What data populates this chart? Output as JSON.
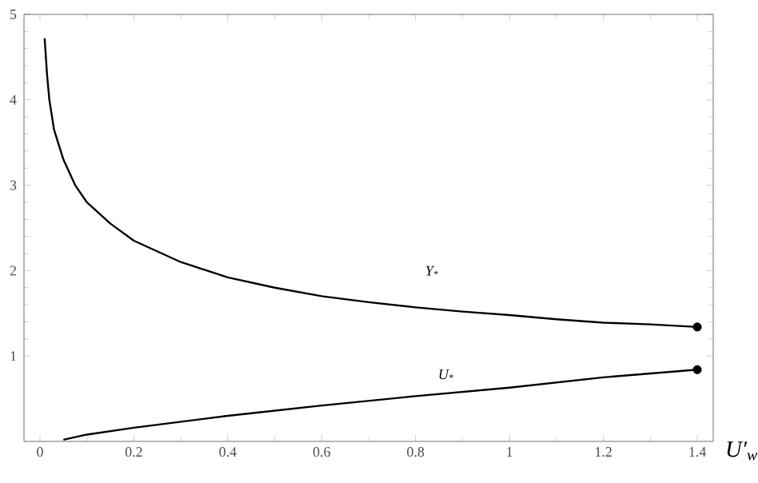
{
  "chart_data": {
    "type": "line",
    "xlabel": "U′$_{w}$",
    "xlim": [
      -0.034,
      1.434
    ],
    "ylim": [
      0,
      5
    ],
    "xticks": [
      0,
      0.2,
      0.4,
      0.6,
      0.8,
      1,
      1.2,
      1.4
    ],
    "yticks": [
      1,
      2,
      3,
      4,
      5
    ],
    "grid": false,
    "series": [
      {
        "name": "Y$_{*}$",
        "color": "#000000",
        "x": [
          0.01,
          0.015,
          0.02,
          0.03,
          0.05,
          0.075,
          0.1,
          0.15,
          0.2,
          0.3,
          0.4,
          0.5,
          0.6,
          0.7,
          0.8,
          0.9,
          1.0,
          1.1,
          1.2,
          1.3,
          1.4
        ],
        "values": [
          4.72,
          4.3,
          4.0,
          3.65,
          3.3,
          3.0,
          2.8,
          2.55,
          2.35,
          2.1,
          1.92,
          1.8,
          1.7,
          1.63,
          1.57,
          1.52,
          1.48,
          1.43,
          1.39,
          1.37,
          1.34
        ]
      },
      {
        "name": "U$_{*}$",
        "color": "#000000",
        "x": [
          0.05,
          0.1,
          0.2,
          0.4,
          0.6,
          0.8,
          1.0,
          1.2,
          1.4
        ],
        "values": [
          0.02,
          0.08,
          0.16,
          0.3,
          0.42,
          0.53,
          0.63,
          0.75,
          0.84
        ]
      },
      {
        "type": "scatter",
        "marker": "circle",
        "color": "#000000",
        "x": [
          1.4,
          1.4
        ],
        "values": [
          1.34,
          0.84
        ]
      }
    ]
  }
}
